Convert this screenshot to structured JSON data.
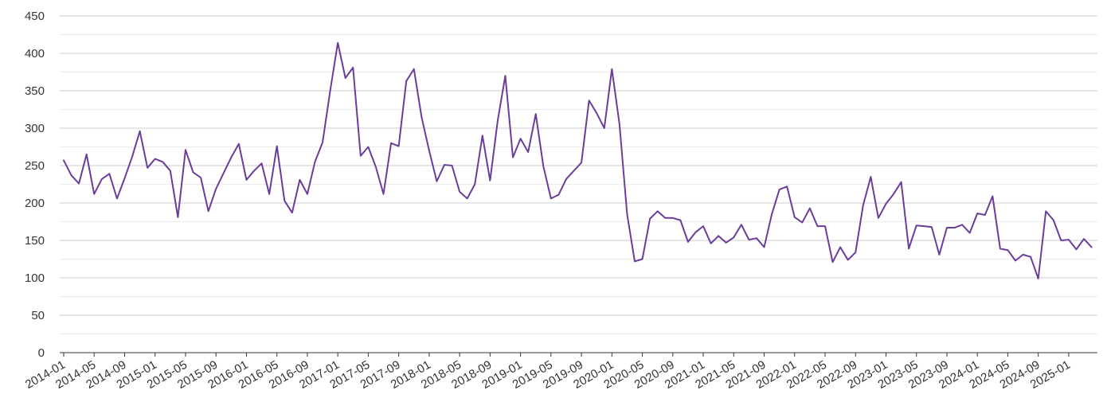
{
  "chart_data": {
    "type": "line",
    "title": "",
    "xlabel": "",
    "ylabel": "",
    "ylim": [
      0,
      450
    ],
    "yticks": [
      "0",
      "50",
      "100",
      "150",
      "200",
      "250",
      "300",
      "350",
      "400",
      "450"
    ],
    "grid": true,
    "legend": "none",
    "x_tick_labels": [
      "2014-01",
      "2014-05",
      "2014-09",
      "2015-01",
      "2015-05",
      "2015-09",
      "2016-01",
      "2016-05",
      "2016-09",
      "2017-01",
      "2017-05",
      "2017-09",
      "2018-01",
      "2018-05",
      "2018-09",
      "2019-01",
      "2019-05",
      "2019-09",
      "2020-01",
      "2020-05",
      "2020-09",
      "2021-01",
      "2021-05",
      "2021-09",
      "2022-01",
      "2022-05",
      "2022-09",
      "2023-01",
      "2023-05",
      "2023-09",
      "2024-01",
      "2024-05",
      "2024-09",
      "2025-01"
    ],
    "start_month": "2014-01",
    "series": [
      {
        "color": "#6a3d9a",
        "values": [
          257,
          237,
          226,
          265,
          212,
          232,
          239,
          206,
          233,
          262,
          296,
          247,
          259,
          255,
          243,
          181,
          271,
          241,
          234,
          189,
          219,
          240,
          261,
          279,
          231,
          243,
          253,
          212,
          276,
          203,
          187,
          231,
          212,
          255,
          281,
          350,
          414,
          367,
          381,
          263,
          275,
          248,
          212,
          280,
          276,
          363,
          379,
          315,
          270,
          229,
          251,
          250,
          215,
          206,
          225,
          290,
          230,
          310,
          370,
          261,
          286,
          268,
          319,
          249,
          206,
          211,
          232,
          243,
          254,
          337,
          320,
          300,
          379,
          305,
          185,
          122,
          125,
          179,
          189,
          180,
          180,
          177,
          148,
          161,
          169,
          146,
          156,
          147,
          154,
          171,
          151,
          153,
          141,
          185,
          218,
          222,
          181,
          174,
          193,
          169,
          169,
          121,
          141,
          124,
          134,
          197,
          235,
          180,
          199,
          212,
          228,
          139,
          170,
          169,
          168,
          131,
          167,
          167,
          171,
          160,
          186,
          184,
          209,
          139,
          137,
          123,
          131,
          128,
          99,
          189,
          177,
          150,
          151,
          138,
          152,
          141
        ]
      }
    ]
  }
}
